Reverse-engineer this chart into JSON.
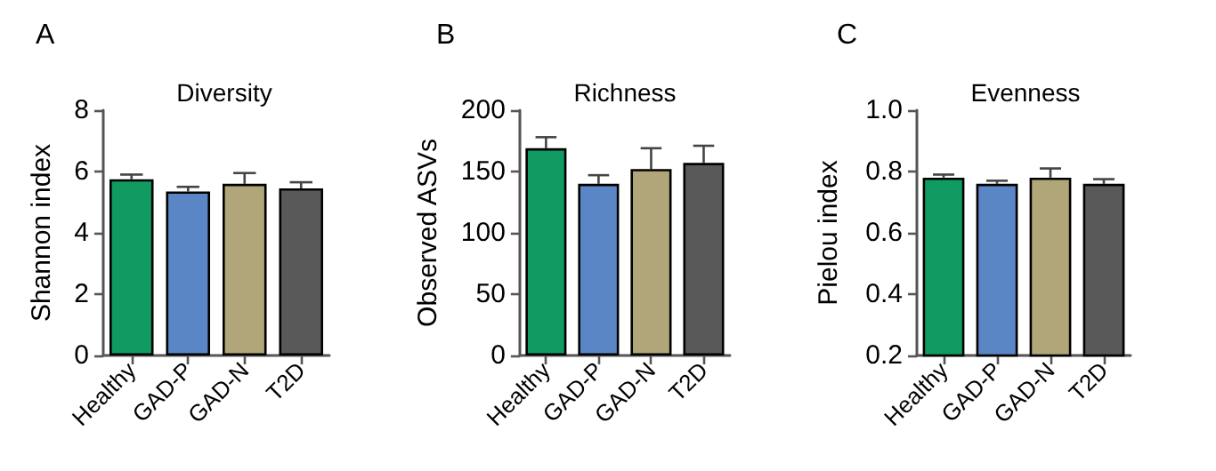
{
  "chart_data": [
    {
      "type": "bar",
      "title": "Diversity",
      "ylabel": "Shannon index",
      "annotations": [
        "A"
      ],
      "categories": [
        "Healthy",
        "GAD-P",
        "GAD-N",
        "T2D"
      ],
      "values": [
        5.75,
        5.35,
        5.6,
        5.45
      ],
      "colors": [
        "#119a62",
        "#5b86c5",
        "#b0a679",
        "#595959"
      ],
      "errors": [
        [
          5.75,
          5.9
        ],
        [
          5.35,
          5.5
        ],
        [
          5.6,
          5.95
        ],
        [
          5.45,
          5.65
        ]
      ],
      "ylim": [
        0,
        8
      ],
      "yticks": [
        0,
        2,
        4,
        6,
        8
      ],
      "grid": false
    },
    {
      "type": "bar",
      "title": "Richness",
      "ylabel": "Observed ASVs",
      "annotations": [
        "B"
      ],
      "categories": [
        "Healthy",
        "GAD-P",
        "GAD-N",
        "T2D"
      ],
      "values": [
        169,
        140,
        152,
        157
      ],
      "colors": [
        "#119a62",
        "#5b86c5",
        "#b0a679",
        "#595959"
      ],
      "errors": [
        [
          169,
          178
        ],
        [
          140,
          147
        ],
        [
          152,
          169
        ],
        [
          157,
          171
        ]
      ],
      "ylim": [
        0,
        200
      ],
      "yticks": [
        0,
        50,
        100,
        150,
        200
      ],
      "grid": false
    },
    {
      "type": "bar",
      "title": "Evenness",
      "ylabel": "Pielou index",
      "annotations": [
        "C"
      ],
      "categories": [
        "Healthy",
        "GAD-P",
        "GAD-N",
        "T2D"
      ],
      "values": [
        0.78,
        0.76,
        0.78,
        0.76
      ],
      "colors": [
        "#119a62",
        "#5b86c5",
        "#b0a679",
        "#595959"
      ],
      "errors": [
        [
          0.78,
          0.79
        ],
        [
          0.76,
          0.77
        ],
        [
          0.78,
          0.81
        ],
        [
          0.76,
          0.775
        ]
      ],
      "ylim": [
        0.2,
        1.0
      ],
      "yticks": [
        0.2,
        {
          "value": 0.4,
          "label": "0.4"
        },
        {
          "value": 0.6,
          "label": "0.6"
        },
        {
          "value": 0.8,
          "label": "0.8"
        },
        {
          "value": 1.0,
          "label": "1.0"
        }
      ],
      "grid": false
    }
  ]
}
